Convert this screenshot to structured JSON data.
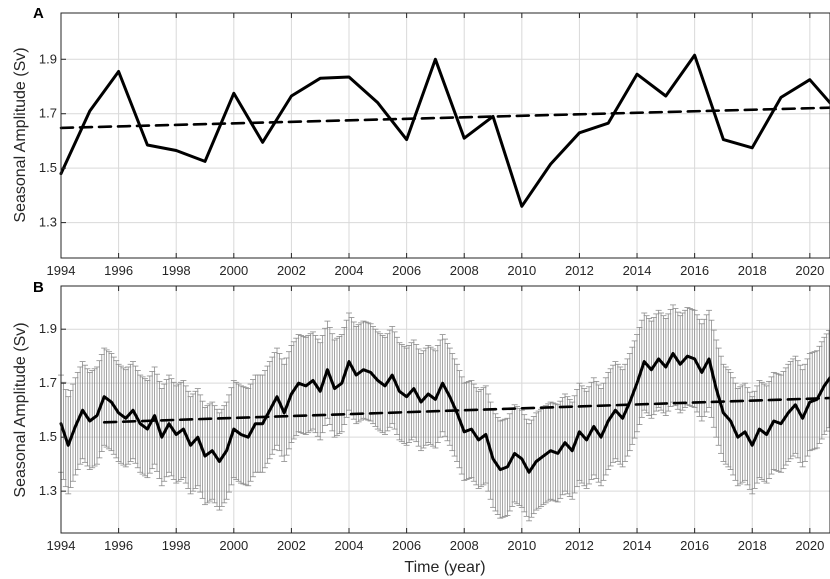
{
  "chart_data": [
    {
      "type": "line",
      "panel_label": "A",
      "title": "",
      "xlabel": "",
      "ylabel": "Seasonal Amplitude (Sv)",
      "xlim": [
        1994,
        2020.7
      ],
      "ylim": [
        1.17,
        2.07
      ],
      "xticks": [
        1994,
        1996,
        1998,
        2000,
        2002,
        2004,
        2006,
        2008,
        2010,
        2012,
        2014,
        2016,
        2018,
        2020
      ],
      "yticks": [
        1.3,
        1.5,
        1.7,
        1.9
      ],
      "grid": true,
      "legend": "none",
      "colors": {
        "series": "#000000",
        "trend": "#000000",
        "grid": "#d9d9d9"
      },
      "series": [
        {
          "style": "solid",
          "x": [
            1994,
            1995,
            1996,
            1997,
            1998,
            1999,
            2000,
            2001,
            2002,
            2003,
            2004,
            2005,
            2006,
            2007,
            2008,
            2009,
            2010,
            2011,
            2012,
            2013,
            2014,
            2015,
            2016,
            2017,
            2018,
            2019,
            2020,
            2020.7
          ],
          "y": [
            1.48,
            1.71,
            1.855,
            1.585,
            1.565,
            1.525,
            1.775,
            1.595,
            1.765,
            1.83,
            1.835,
            1.74,
            1.605,
            1.9,
            1.61,
            1.69,
            1.36,
            1.515,
            1.63,
            1.665,
            1.845,
            1.765,
            1.915,
            1.605,
            1.575,
            1.76,
            1.825,
            1.74
          ]
        },
        {
          "style": "dashed",
          "x": [
            1994,
            2020.7
          ],
          "y": [
            1.648,
            1.722
          ]
        }
      ]
    },
    {
      "type": "line",
      "panel_label": "B",
      "title": "",
      "xlabel": "Time (year)",
      "ylabel": "Seasonal Amplitude (Sv)",
      "xlim": [
        1994,
        2020.7
      ],
      "ylim": [
        1.145,
        2.06
      ],
      "xticks": [
        1994,
        1996,
        1998,
        2000,
        2002,
        2004,
        2006,
        2008,
        2010,
        2012,
        2014,
        2016,
        2018,
        2020
      ],
      "yticks": [
        1.3,
        1.5,
        1.7,
        1.9
      ],
      "grid": true,
      "legend": "none",
      "error_bar_halfwidth": 0.18,
      "colors": {
        "series": "#000000",
        "trend": "#000000",
        "errorbars": "#8c8c8c",
        "grid": "#d9d9d9"
      },
      "series": [
        {
          "style": "solid",
          "with_error_bars": true,
          "x": [
            1994.0,
            1994.25,
            1994.5,
            1994.75,
            1995.0,
            1995.25,
            1995.5,
            1995.75,
            1996.0,
            1996.25,
            1996.5,
            1996.75,
            1997.0,
            1997.25,
            1997.5,
            1997.75,
            1998.0,
            1998.25,
            1998.5,
            1998.75,
            1999.0,
            1999.25,
            1999.5,
            1999.75,
            2000.0,
            2000.25,
            2000.5,
            2000.75,
            2001.0,
            2001.25,
            2001.5,
            2001.75,
            2002.0,
            2002.25,
            2002.5,
            2002.75,
            2003.0,
            2003.25,
            2003.5,
            2003.75,
            2004.0,
            2004.25,
            2004.5,
            2004.75,
            2005.0,
            2005.25,
            2005.5,
            2005.75,
            2006.0,
            2006.25,
            2006.5,
            2006.75,
            2007.0,
            2007.25,
            2007.5,
            2007.75,
            2008.0,
            2008.25,
            2008.5,
            2008.75,
            2009.0,
            2009.25,
            2009.5,
            2009.75,
            2010.0,
            2010.25,
            2010.5,
            2010.75,
            2011.0,
            2011.25,
            2011.5,
            2011.75,
            2012.0,
            2012.25,
            2012.5,
            2012.75,
            2013.0,
            2013.25,
            2013.5,
            2013.75,
            2014.0,
            2014.25,
            2014.5,
            2014.75,
            2015.0,
            2015.25,
            2015.5,
            2015.75,
            2016.0,
            2016.25,
            2016.5,
            2016.75,
            2017.0,
            2017.25,
            2017.5,
            2017.75,
            2018.0,
            2018.25,
            2018.5,
            2018.75,
            2019.0,
            2019.25,
            2019.5,
            2019.75,
            2020.0,
            2020.25,
            2020.5,
            2020.7
          ],
          "y": [
            1.55,
            1.47,
            1.54,
            1.6,
            1.56,
            1.58,
            1.65,
            1.63,
            1.59,
            1.57,
            1.6,
            1.55,
            1.53,
            1.58,
            1.5,
            1.55,
            1.51,
            1.53,
            1.47,
            1.5,
            1.43,
            1.45,
            1.41,
            1.45,
            1.53,
            1.51,
            1.5,
            1.55,
            1.55,
            1.6,
            1.65,
            1.59,
            1.66,
            1.7,
            1.69,
            1.71,
            1.67,
            1.75,
            1.68,
            1.7,
            1.78,
            1.73,
            1.75,
            1.74,
            1.71,
            1.69,
            1.73,
            1.67,
            1.65,
            1.68,
            1.63,
            1.66,
            1.64,
            1.7,
            1.65,
            1.59,
            1.52,
            1.53,
            1.49,
            1.51,
            1.42,
            1.38,
            1.39,
            1.44,
            1.42,
            1.37,
            1.41,
            1.43,
            1.45,
            1.44,
            1.48,
            1.45,
            1.52,
            1.49,
            1.54,
            1.5,
            1.56,
            1.6,
            1.57,
            1.63,
            1.7,
            1.78,
            1.75,
            1.79,
            1.76,
            1.81,
            1.77,
            1.8,
            1.79,
            1.74,
            1.79,
            1.68,
            1.59,
            1.56,
            1.5,
            1.52,
            1.47,
            1.53,
            1.51,
            1.56,
            1.55,
            1.59,
            1.62,
            1.57,
            1.63,
            1.64,
            1.69,
            1.72
          ]
        },
        {
          "style": "dashed",
          "x": [
            1995.5,
            2020.7
          ],
          "y": [
            1.555,
            1.645
          ]
        }
      ]
    }
  ]
}
